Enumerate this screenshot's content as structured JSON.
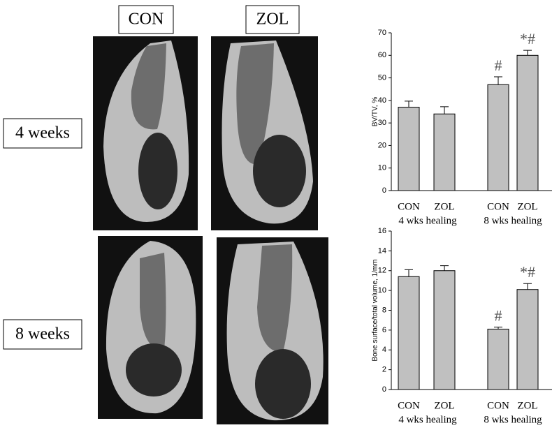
{
  "panel": {
    "column_labels": [
      "CON",
      "ZOL"
    ],
    "row_labels": [
      "4 weeks",
      "8 weeks"
    ]
  },
  "chart_data": [
    {
      "type": "bar",
      "y_label": "BV/TV, %",
      "categories": [
        "CON",
        "ZOL",
        "CON",
        "ZOL"
      ],
      "group_labels": [
        "4 wks healing",
        "8 wks healing"
      ],
      "values": [
        37,
        34,
        47,
        60
      ],
      "errors": [
        2.7,
        3.2,
        3.5,
        2.2
      ],
      "annotations": [
        null,
        null,
        "#",
        "*#"
      ],
      "color": "#c0c0c0",
      "ylim": [
        0,
        70
      ],
      "yticks": [
        0,
        10,
        20,
        30,
        40,
        50,
        60,
        70
      ]
    },
    {
      "type": "bar",
      "y_label": "Bone surface/total volume, 1/mm",
      "categories": [
        "CON",
        "ZOL",
        "CON",
        "ZOL"
      ],
      "group_labels": [
        "4 wks healing",
        "8 wks healing"
      ],
      "values": [
        11.4,
        12.0,
        6.1,
        10.1
      ],
      "errors": [
        0.7,
        0.5,
        0.2,
        0.6
      ],
      "annotations": [
        null,
        null,
        "#",
        "*#"
      ],
      "color": "#c0c0c0",
      "ylim": [
        0,
        16
      ],
      "yticks": [
        0,
        2,
        4,
        6,
        8,
        10,
        12,
        14,
        16
      ]
    }
  ]
}
